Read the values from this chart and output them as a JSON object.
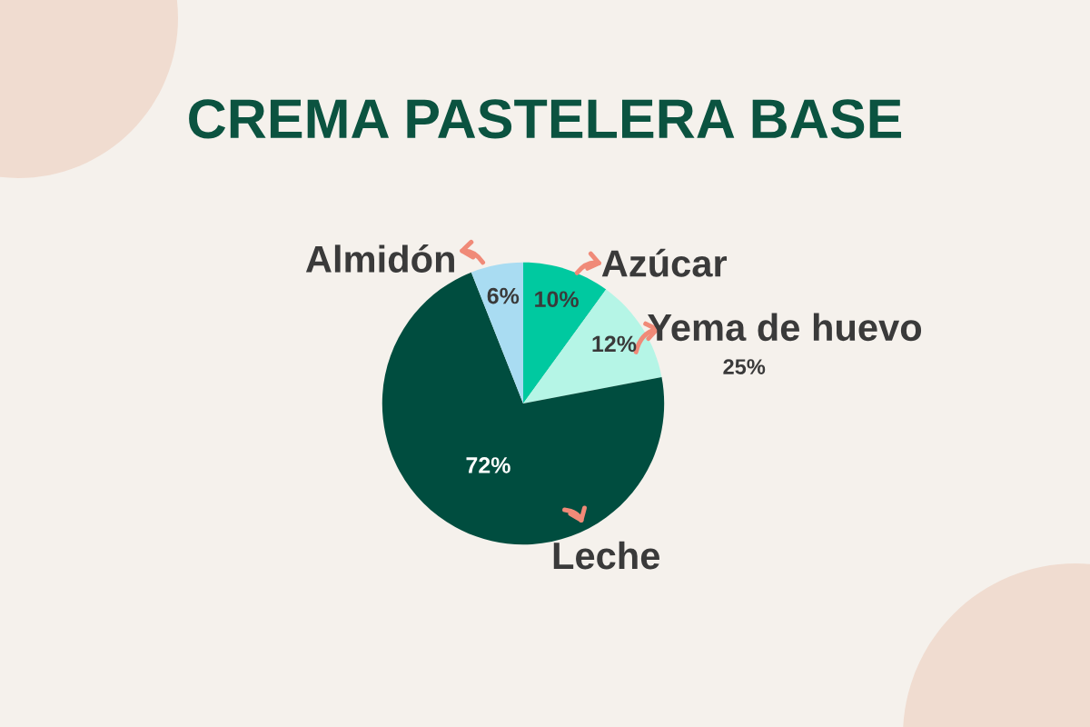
{
  "chart_data": {
    "type": "pie",
    "title": "CREMA PASTELERA BASE",
    "categories": [
      "Azúcar",
      "Yema de huevo",
      "Leche",
      "Almidón"
    ],
    "values": [
      10,
      12,
      72,
      6
    ],
    "colors": [
      "#00c9a0",
      "#b5f5e6",
      "#004d3f",
      "#a9dcf2"
    ],
    "value_labels": [
      "10%",
      "12%",
      "72%",
      "6%"
    ],
    "annotations": [
      "25%"
    ]
  }
}
